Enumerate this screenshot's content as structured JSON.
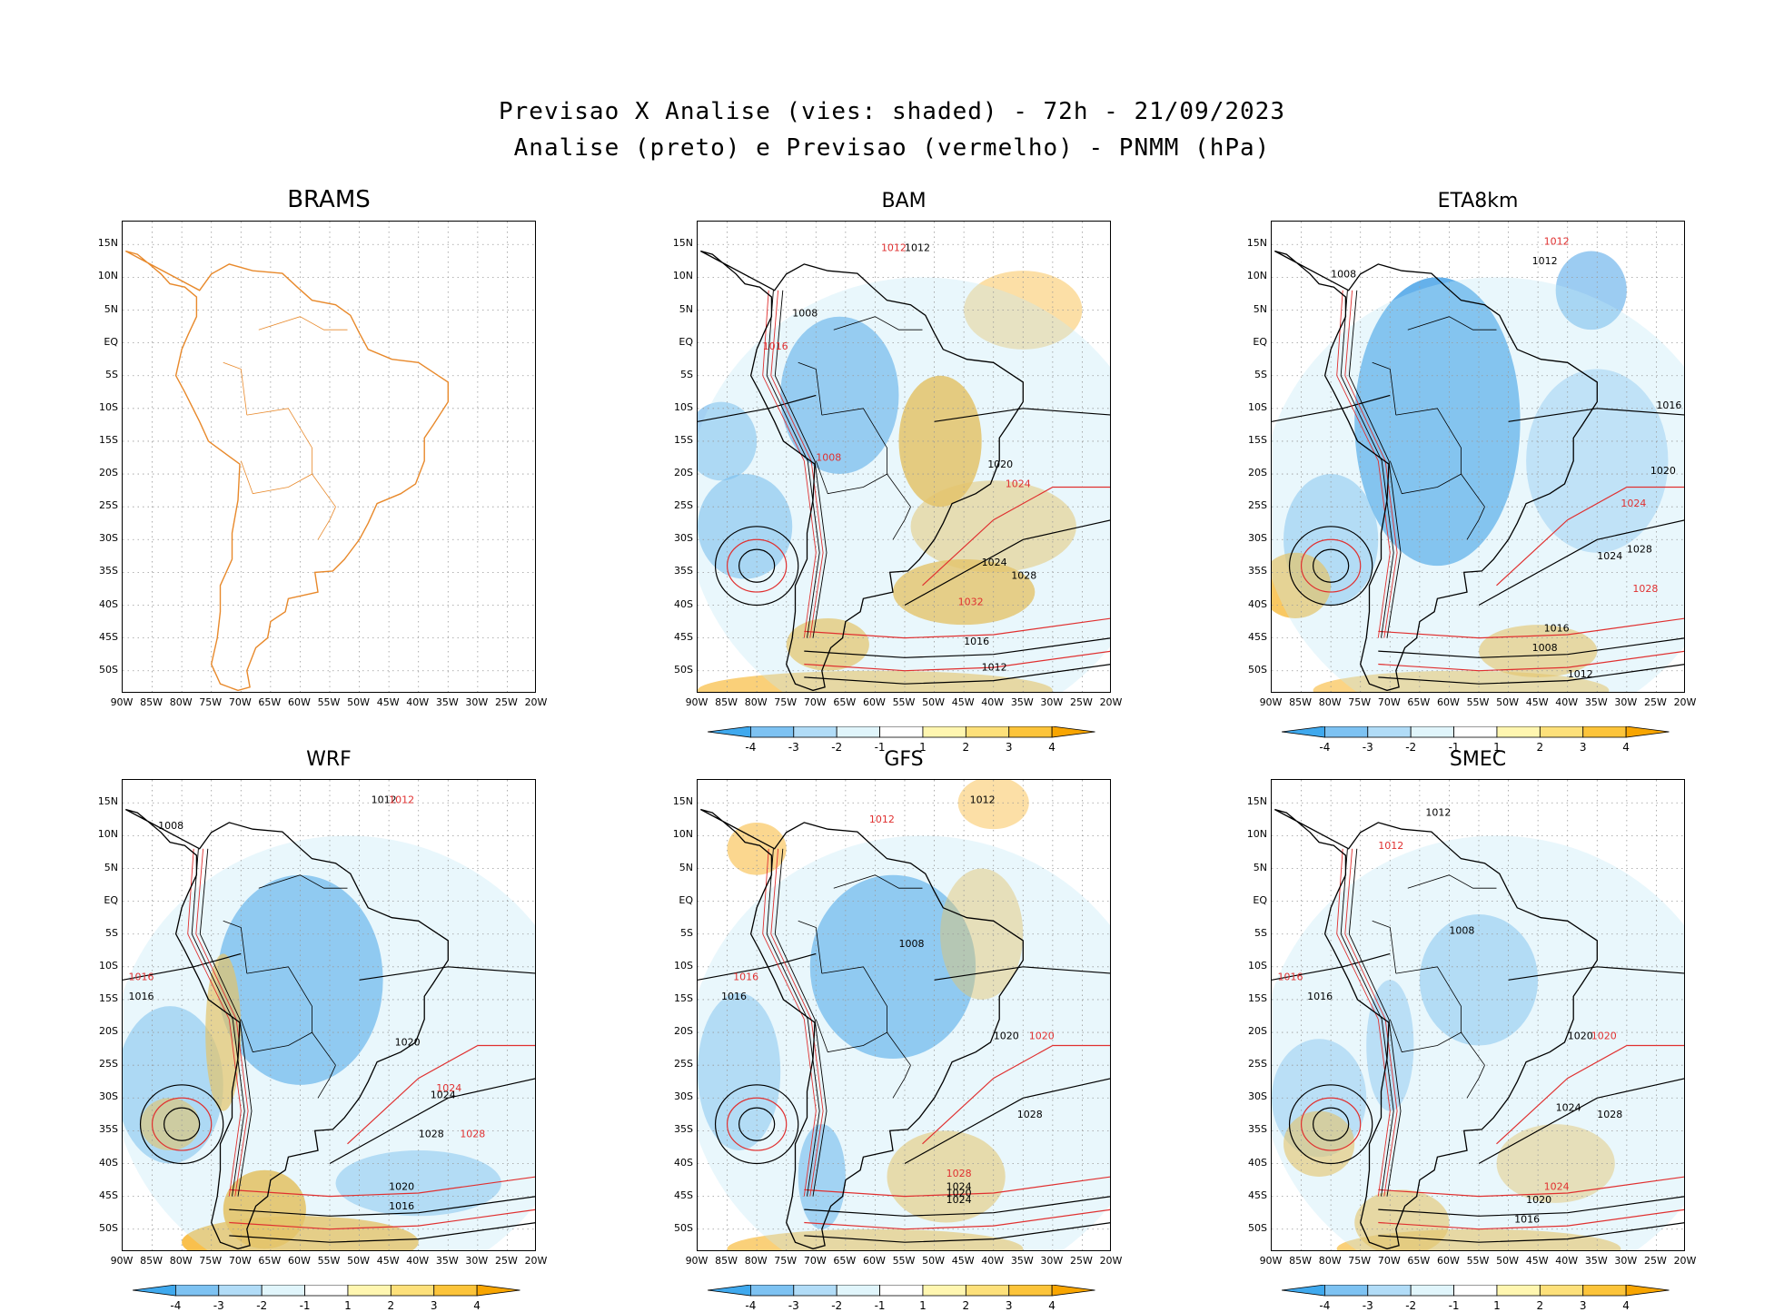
{
  "title_line1": "Previsao X Analise (vies: shaded) - 72h - 21/09/2023",
  "title_line2": "Analise (preto) e Previsao (vermelho) - PNMM (hPa)",
  "lat_labels": [
    "15N",
    "10N",
    "5N",
    "EQ",
    "5S",
    "10S",
    "15S",
    "20S",
    "25S",
    "30S",
    "35S",
    "40S",
    "45S",
    "50S"
  ],
  "lon_labels": [
    "90W",
    "85W",
    "80W",
    "75W",
    "70W",
    "65W",
    "60W",
    "55W",
    "50W",
    "45W",
    "40W",
    "35W",
    "30W",
    "25W",
    "20W"
  ],
  "colorbar": {
    "labels": [
      "-4",
      "-3",
      "-2",
      "-1",
      "1",
      "2",
      "3",
      "4"
    ],
    "colors": [
      "#3fa9ee",
      "#7dc2f2",
      "#b1dcf7",
      "#e0f5fb",
      "#ffffff",
      "#fff6b0",
      "#fde07a",
      "#fcc43a",
      "#f8a500"
    ]
  },
  "colors": {
    "analysis": "#000000",
    "forecast": "#e03030",
    "outline": "#e8892b",
    "neg": "#4aa3e8",
    "pos": "#f7b020"
  },
  "panels": [
    {
      "id": "brams",
      "name": "BRAMS",
      "has_colorbar": false,
      "contours": []
    },
    {
      "id": "bam",
      "name": "BAM",
      "has_colorbar": true,
      "contours": [
        {
          "t": "1012",
          "c": "r"
        },
        {
          "t": "1012",
          "c": "k"
        },
        {
          "t": "1008",
          "c": "k"
        },
        {
          "t": "1016",
          "c": "r"
        },
        {
          "t": "1020",
          "c": "k"
        },
        {
          "t": "1024",
          "c": "r"
        },
        {
          "t": "1024",
          "c": "k"
        },
        {
          "t": "1028",
          "c": "k"
        },
        {
          "t": "1032",
          "c": "r"
        },
        {
          "t": "1016",
          "c": "k"
        },
        {
          "t": "1012",
          "c": "k"
        },
        {
          "t": "1008",
          "c": "r"
        }
      ]
    },
    {
      "id": "eta8km",
      "name": "ETA8km",
      "has_colorbar": true,
      "contours": [
        {
          "t": "1012",
          "c": "r"
        },
        {
          "t": "1008",
          "c": "k"
        },
        {
          "t": "1012",
          "c": "k"
        },
        {
          "t": "1016",
          "c": "k"
        },
        {
          "t": "1020",
          "c": "k"
        },
        {
          "t": "1024",
          "c": "k"
        },
        {
          "t": "1028",
          "c": "k"
        },
        {
          "t": "1028",
          "c": "r"
        },
        {
          "t": "1016",
          "c": "k"
        },
        {
          "t": "1008",
          "c": "k"
        },
        {
          "t": "1024",
          "c": "r"
        },
        {
          "t": "1012",
          "c": "k"
        }
      ]
    },
    {
      "id": "wrf",
      "name": "WRF",
      "has_colorbar": true,
      "contours": [
        {
          "t": "1012",
          "c": "k"
        },
        {
          "t": "1012",
          "c": "r"
        },
        {
          "t": "1008",
          "c": "k"
        },
        {
          "t": "1016",
          "c": "k"
        },
        {
          "t": "1016",
          "c": "r"
        },
        {
          "t": "1020",
          "c": "k"
        },
        {
          "t": "1024",
          "c": "k"
        },
        {
          "t": "1024",
          "c": "r"
        },
        {
          "t": "1028",
          "c": "k"
        },
        {
          "t": "1028",
          "c": "r"
        },
        {
          "t": "1020",
          "c": "k"
        },
        {
          "t": "1016",
          "c": "k"
        }
      ]
    },
    {
      "id": "gfs",
      "name": "GFS",
      "has_colorbar": true,
      "contours": [
        {
          "t": "1012",
          "c": "k"
        },
        {
          "t": "1012",
          "c": "r"
        },
        {
          "t": "1008",
          "c": "k"
        },
        {
          "t": "1016",
          "c": "k"
        },
        {
          "t": "1016",
          "c": "r"
        },
        {
          "t": "1020",
          "c": "k"
        },
        {
          "t": "1020",
          "c": "r"
        },
        {
          "t": "1024",
          "c": "k"
        },
        {
          "t": "1028",
          "c": "k"
        },
        {
          "t": "1028",
          "c": "r"
        },
        {
          "t": "1024",
          "c": "k"
        },
        {
          "t": "1020",
          "c": "k"
        }
      ]
    },
    {
      "id": "smec",
      "name": "SMEC",
      "has_colorbar": true,
      "contours": [
        {
          "t": "1012",
          "c": "k"
        },
        {
          "t": "1012",
          "c": "r"
        },
        {
          "t": "1008",
          "c": "k"
        },
        {
          "t": "1016",
          "c": "k"
        },
        {
          "t": "1016",
          "c": "r"
        },
        {
          "t": "1020",
          "c": "k"
        },
        {
          "t": "1020",
          "c": "r"
        },
        {
          "t": "1024",
          "c": "k"
        },
        {
          "t": "1024",
          "c": "r"
        },
        {
          "t": "1028",
          "c": "k"
        },
        {
          "t": "1020",
          "c": "k"
        },
        {
          "t": "1016",
          "c": "k"
        }
      ]
    }
  ]
}
